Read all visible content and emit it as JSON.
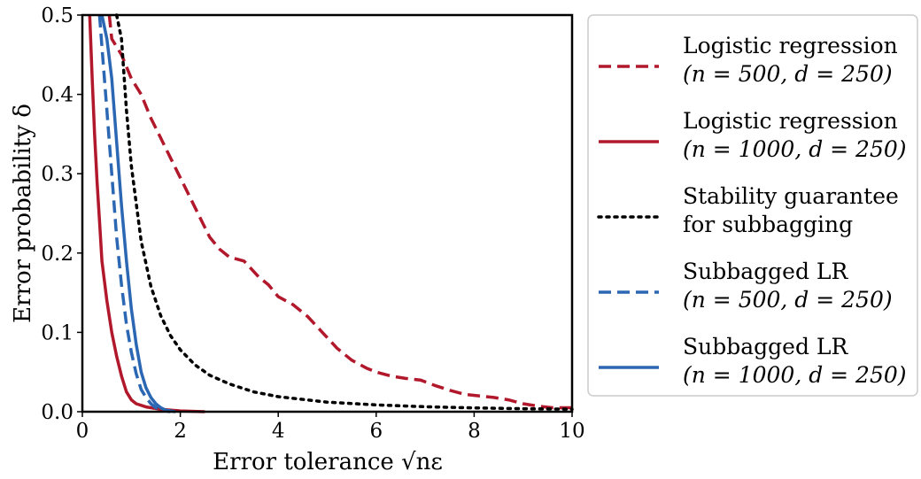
{
  "chart_data": {
    "type": "line",
    "xlabel": "Error tolerance √nε",
    "ylabel": "Error probability δ",
    "xlim": [
      0,
      10
    ],
    "ylim": [
      0,
      0.5
    ],
    "xticks": [
      "0",
      "2",
      "4",
      "6",
      "8",
      "10"
    ],
    "yticks": [
      "0.0",
      "0.1",
      "0.2",
      "0.3",
      "0.4",
      "0.5"
    ],
    "grid": false,
    "legend_position": "outside-right",
    "series": [
      {
        "name": "Logistic regression (n = 500, d = 250)",
        "name_line1": "Logistic regression",
        "name_line2": "(n = 500, d = 250)",
        "color": "#b2182b",
        "style": "dashed",
        "x": [
          0.55,
          0.6,
          0.8,
          1.0,
          1.2,
          1.4,
          1.6,
          1.8,
          2.0,
          2.2,
          2.4,
          2.6,
          2.8,
          3.0,
          3.3,
          3.6,
          3.8,
          4.0,
          4.3,
          4.6,
          4.9,
          5.2,
          5.5,
          5.8,
          6.0,
          6.3,
          6.6,
          6.9,
          7.2,
          7.5,
          7.8,
          8.1,
          8.4,
          8.7,
          9.0,
          9.3,
          9.6,
          10.0
        ],
        "y": [
          0.5,
          0.47,
          0.45,
          0.42,
          0.4,
          0.37,
          0.345,
          0.32,
          0.295,
          0.27,
          0.245,
          0.22,
          0.205,
          0.195,
          0.19,
          0.17,
          0.16,
          0.145,
          0.135,
          0.12,
          0.1,
          0.08,
          0.065,
          0.055,
          0.05,
          0.045,
          0.042,
          0.04,
          0.033,
          0.027,
          0.022,
          0.02,
          0.018,
          0.015,
          0.01,
          0.007,
          0.005,
          0.005
        ]
      },
      {
        "name": "Logistic regression (n = 1000, d = 250)",
        "name_line1": "Logistic regression",
        "name_line2": "(n = 1000, d = 250)",
        "color": "#b2182b",
        "style": "solid",
        "x": [
          0.15,
          0.2,
          0.25,
          0.3,
          0.35,
          0.4,
          0.5,
          0.6,
          0.7,
          0.8,
          0.9,
          1.0,
          1.1,
          1.3,
          1.6,
          2.0,
          2.5
        ],
        "y": [
          0.5,
          0.42,
          0.35,
          0.29,
          0.24,
          0.19,
          0.14,
          0.1,
          0.07,
          0.045,
          0.025,
          0.015,
          0.01,
          0.006,
          0.003,
          0.001,
          0.0
        ]
      },
      {
        "name": "Stability guarantee for subbagging",
        "name_line1": "Stability guarantee",
        "name_line2": "for subbagging",
        "color": "#000000",
        "style": "dotted",
        "x": [
          0.7,
          0.8,
          0.9,
          1.0,
          1.2,
          1.4,
          1.6,
          1.8,
          2.0,
          2.3,
          2.6,
          3.0,
          3.5,
          4.0,
          5.0,
          6.0,
          7.0,
          8.0,
          9.0,
          10.0
        ],
        "y": [
          0.5,
          0.47,
          0.38,
          0.31,
          0.215,
          0.158,
          0.121,
          0.096,
          0.078,
          0.059,
          0.046,
          0.035,
          0.025,
          0.019,
          0.012,
          0.0086,
          0.0063,
          0.0048,
          0.0038,
          0.0031
        ]
      },
      {
        "name": "Subbagged LR (n = 500, d = 250)",
        "name_line1": "Subbagged LR",
        "name_line2": "(n = 500, d = 250)",
        "color": "#2b67b2",
        "style": "dashed",
        "x": [
          0.35,
          0.4,
          0.5,
          0.6,
          0.7,
          0.8,
          0.9,
          1.0,
          1.1,
          1.2,
          1.3,
          1.4,
          1.5,
          1.6,
          1.7,
          1.8
        ],
        "y": [
          0.5,
          0.46,
          0.38,
          0.3,
          0.22,
          0.16,
          0.11,
          0.075,
          0.048,
          0.028,
          0.018,
          0.01,
          0.005,
          0.003,
          0.001,
          0.0
        ]
      },
      {
        "name": "Subbagged LR (n = 1000, d = 250)",
        "name_line1": "Subbagged LR",
        "name_line2": "(n = 1000, d = 250)",
        "color": "#2b67b2",
        "style": "solid",
        "x": [
          0.4,
          0.5,
          0.6,
          0.7,
          0.8,
          0.9,
          1.0,
          1.1,
          1.2,
          1.3,
          1.4,
          1.5,
          1.6,
          1.7,
          1.8,
          1.9
        ],
        "y": [
          0.5,
          0.47,
          0.42,
          0.34,
          0.26,
          0.19,
          0.13,
          0.085,
          0.05,
          0.03,
          0.018,
          0.01,
          0.005,
          0.002,
          0.001,
          0.0
        ]
      }
    ]
  }
}
